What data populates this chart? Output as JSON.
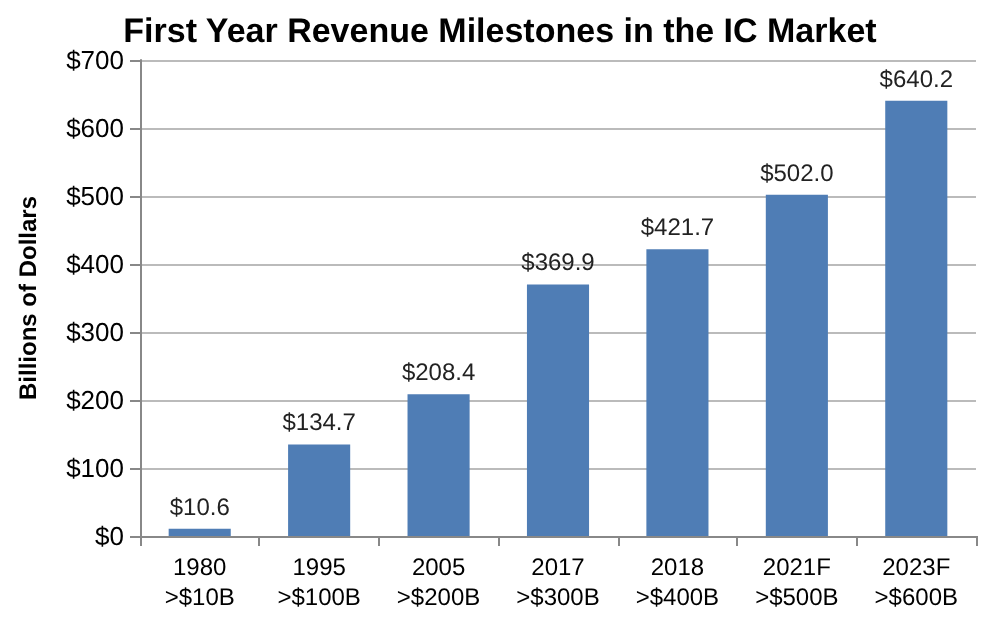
{
  "chart_data": {
    "type": "bar",
    "title": "First Year Revenue Milestones in the IC Market",
    "ylabel": "Billions of Dollars",
    "categories": [
      "1980\n>$10B",
      "1995\n>$100B",
      "2005\n>$200B",
      "2017\n>$300B",
      "2018\n>$400B",
      "2021F\n>$500B",
      "2023F\n>$600B"
    ],
    "values": [
      10.6,
      134.7,
      208.4,
      369.9,
      421.7,
      502.0,
      640.2
    ],
    "value_labels": [
      "$10.6",
      "$134.7",
      "$208.4",
      "$369.9",
      "$421.7",
      "$502.0",
      "$640.2"
    ],
    "color": "#4f7db5",
    "ylim": [
      0,
      700
    ],
    "yticks": [
      {
        "value": 0,
        "label": "$0"
      },
      {
        "value": 100,
        "label": "$100"
      },
      {
        "value": 200,
        "label": "$200"
      },
      {
        "value": 300,
        "label": "$300"
      },
      {
        "value": 400,
        "label": "$400"
      },
      {
        "value": 500,
        "label": "$500"
      },
      {
        "value": 600,
        "label": "$600"
      },
      {
        "value": 700,
        "label": "$700"
      }
    ],
    "grid": "y"
  }
}
